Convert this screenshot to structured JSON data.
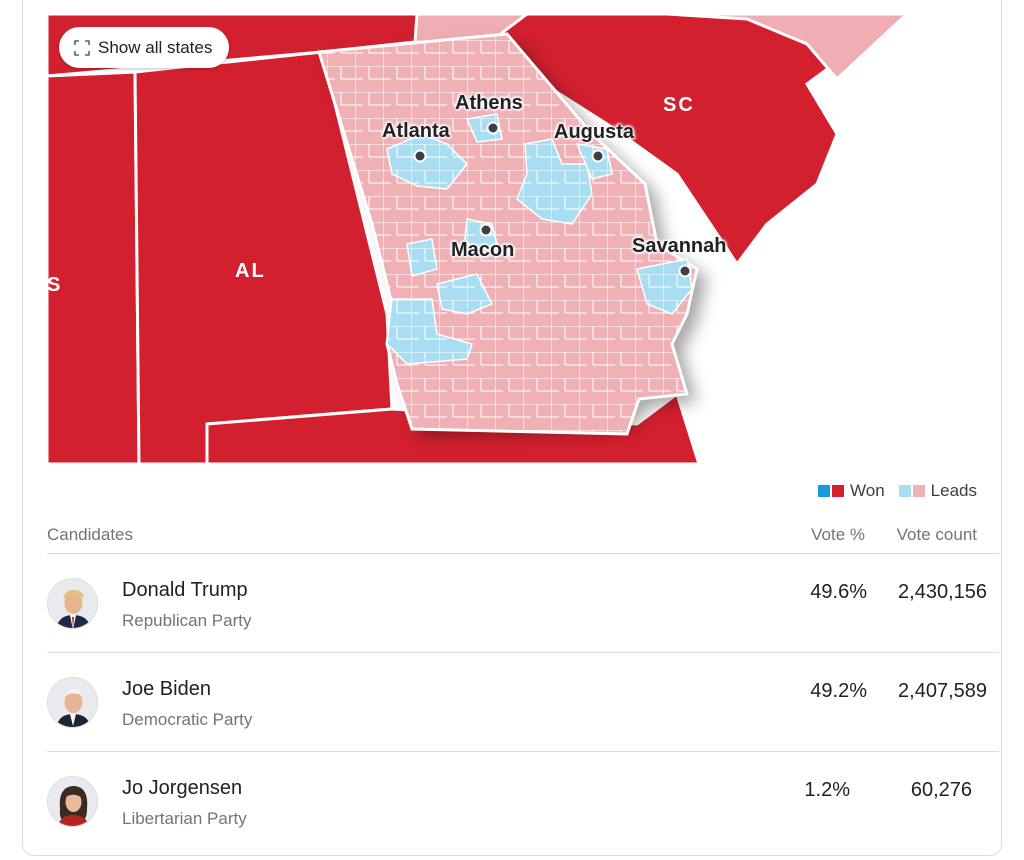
{
  "map": {
    "show_all_label": "Show all states",
    "expand_icon": "expand-arrows-icon",
    "states": [
      {
        "label": "SC"
      },
      {
        "label": "AL"
      },
      {
        "label": "S"
      }
    ],
    "cities": [
      {
        "name": "Athens"
      },
      {
        "name": "Atlanta"
      },
      {
        "name": "Augusta"
      },
      {
        "name": "Macon"
      },
      {
        "name": "Savannah"
      }
    ],
    "colors": {
      "won_dem": "#1a9ad8",
      "won_rep": "#d3202e",
      "leads_dem": "#a9def2",
      "leads_rep": "#efb0b6",
      "state_rep": "#d3202e",
      "state_leads_rep": "#f0aeb4"
    }
  },
  "legend": {
    "won_label": "Won",
    "leads_label": "Leads"
  },
  "table": {
    "headers": {
      "candidates": "Candidates",
      "vote_pct": "Vote %",
      "vote_count": "Vote count"
    },
    "rows": [
      {
        "name": "Donald Trump",
        "party": "Republican Party",
        "pct": "49.6%",
        "count": "2,430,156",
        "avatar": "trump-avatar"
      },
      {
        "name": "Joe Biden",
        "party": "Democratic Party",
        "pct": "49.2%",
        "count": "2,407,589",
        "avatar": "biden-avatar"
      },
      {
        "name": "Jo Jorgensen",
        "party": "Libertarian Party",
        "pct": "1.2%",
        "count": "60,276",
        "avatar": "jorgensen-avatar"
      }
    ]
  }
}
